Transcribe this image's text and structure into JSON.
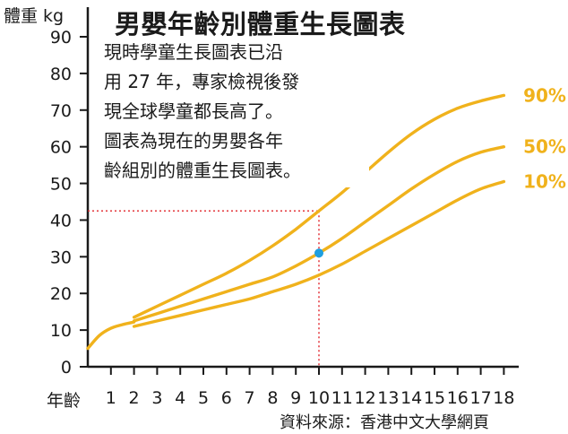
{
  "title": "男嬰年齡別體重生長圖表",
  "note": {
    "lines": [
      "現時學童生長圖表已沿",
      "用 27 年，專家檢視後發",
      "現全球學童都長高了。",
      "圖表為現在的男嬰各年",
      "齡組別的體重生長圖表。"
    ]
  },
  "source": "資料來源：香港中文大學網頁",
  "colors": {
    "curve": "#f0b21c",
    "marker": "#1e9fe0",
    "guide": "#e0242a",
    "axis": "#1a1a1a"
  },
  "chart_data": {
    "type": "line",
    "title": "男嬰年齡別體重生長圖表",
    "xlabel": "年齡",
    "ylabel": "體重 kg",
    "xlim": [
      0,
      18
    ],
    "ylim": [
      0,
      90
    ],
    "x_ticks": [
      1,
      2,
      3,
      4,
      5,
      6,
      7,
      8,
      9,
      10,
      11,
      12,
      13,
      14,
      15,
      16,
      17,
      18
    ],
    "y_ticks": [
      0,
      10,
      20,
      30,
      40,
      50,
      60,
      70,
      80,
      90
    ],
    "grid": false,
    "legend": "curve-end labels at right",
    "series": [
      {
        "name": "90%",
        "x": [
          2,
          3,
          4,
          5,
          6,
          7,
          8,
          9,
          10,
          11,
          12,
          13,
          14,
          15,
          16,
          17,
          18
        ],
        "y": [
          13.5,
          16.5,
          19.5,
          22.5,
          25.5,
          29,
          33,
          37.5,
          42.5,
          47.5,
          53,
          58.5,
          63.5,
          67.5,
          70.5,
          72.5,
          74
        ]
      },
      {
        "name": "50%",
        "x": [
          2,
          3,
          4,
          5,
          6,
          7,
          8,
          9,
          10,
          11,
          12,
          13,
          14,
          15,
          16,
          17,
          18
        ],
        "y": [
          12.5,
          14.5,
          16.5,
          18.5,
          20.5,
          22.5,
          24.5,
          27.5,
          31,
          35,
          39.5,
          44,
          48.5,
          52.5,
          56,
          58.5,
          60
        ]
      },
      {
        "name": "10%",
        "x": [
          2,
          3,
          4,
          5,
          6,
          7,
          8,
          9,
          10,
          11,
          12,
          13,
          14,
          15,
          16,
          17,
          18
        ],
        "y": [
          11,
          12.5,
          14,
          15.5,
          17,
          18.5,
          20.5,
          22.5,
          25,
          28,
          31.5,
          35,
          38.5,
          42,
          45.5,
          48.5,
          50.5
        ]
      },
      {
        "name": "",
        "x": [
          0,
          0.5,
          1,
          1.5,
          2
        ],
        "y": [
          5,
          8.5,
          10.5,
          11.5,
          12.2
        ]
      }
    ],
    "highlight": {
      "x": 10,
      "y": 31,
      "reference_y": 42.5
    }
  }
}
